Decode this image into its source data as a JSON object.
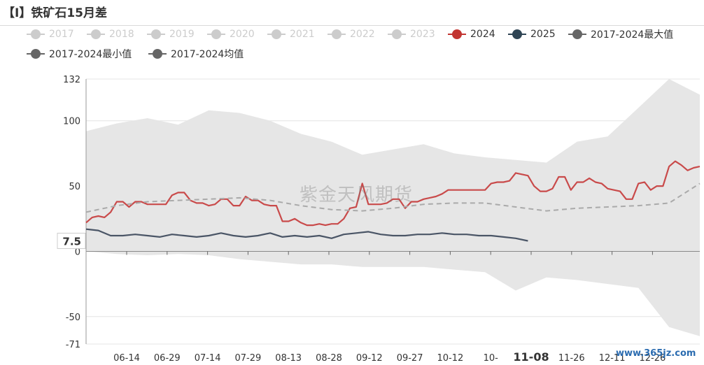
{
  "title": "【I】铁矿石15月差",
  "watermark": "紫金天风期货",
  "site_badge": "www.365jz.com",
  "colors": {
    "series_2024": "#c94a4a",
    "series_2025": "#4a5566",
    "band": "#e6e6e6",
    "average": "#aaaaaa",
    "legend_inactive": "#cccccc",
    "legend_active_text": "#333333"
  },
  "legend": [
    {
      "label": "2017",
      "active": false,
      "color": "#cccccc"
    },
    {
      "label": "2018",
      "active": false,
      "color": "#cccccc"
    },
    {
      "label": "2019",
      "active": false,
      "color": "#cccccc"
    },
    {
      "label": "2020",
      "active": false,
      "color": "#cccccc"
    },
    {
      "label": "2021",
      "active": false,
      "color": "#cccccc"
    },
    {
      "label": "2022",
      "active": false,
      "color": "#cccccc"
    },
    {
      "label": "2023",
      "active": false,
      "color": "#cccccc"
    },
    {
      "label": "2024",
      "active": true,
      "color": "#c23531"
    },
    {
      "label": "2025",
      "active": true,
      "color": "#2f4554"
    },
    {
      "label": "2017-2024最大值",
      "active": true,
      "color": "#666666"
    },
    {
      "label": "2017-2024最小值",
      "active": true,
      "color": "#666666"
    },
    {
      "label": "2017-2024均值",
      "active": true,
      "color": "#666666"
    }
  ],
  "chart_data": {
    "type": "line",
    "title": "【I】铁矿石15月差",
    "y_ticks": [
      -71,
      -50,
      0,
      50,
      100,
      132
    ],
    "ylim": [
      -71,
      132
    ],
    "x_ticks": [
      "06-14",
      "06-29",
      "07-14",
      "07-29",
      "08-13",
      "08-28",
      "09-12",
      "09-27",
      "10-12",
      "10-",
      "11-08",
      "11-26",
      "12-11",
      "12-26"
    ],
    "x_highlight": "11-08",
    "y_marker": {
      "label": "7.5",
      "value": 7.5
    },
    "grid": true,
    "legend_position": "top",
    "x_index_range": [
      0,
      100
    ],
    "series": [
      {
        "name": "2024",
        "kind": "line",
        "color": "#c94a4a",
        "x": [
          0,
          1,
          2,
          3,
          4,
          5,
          6,
          7,
          8,
          9,
          10,
          11,
          12,
          13,
          14,
          15,
          16,
          17,
          18,
          19,
          20,
          21,
          22,
          23,
          24,
          25,
          26,
          27,
          28,
          29,
          30,
          31,
          32,
          33,
          34,
          35,
          36,
          37,
          38,
          39,
          40,
          41,
          42,
          43,
          44,
          45,
          46,
          47,
          48,
          49,
          50,
          51,
          52,
          53,
          54,
          55,
          56,
          57,
          58,
          59,
          60,
          61,
          62,
          63,
          64,
          65,
          66,
          67,
          68,
          69,
          70,
          71,
          72,
          73,
          74,
          75,
          76,
          77,
          78,
          79,
          80,
          81,
          82,
          83,
          84,
          85,
          86,
          87,
          88,
          89,
          90,
          91,
          92,
          93,
          94,
          95,
          96,
          97,
          98,
          99,
          100
        ],
        "y": [
          22,
          26,
          27,
          26,
          30,
          38,
          38,
          34,
          38,
          38,
          36,
          36,
          36,
          36,
          43,
          45,
          45,
          39,
          37,
          37,
          35,
          36,
          40,
          40,
          35,
          35,
          42,
          39,
          39,
          36,
          35,
          35,
          23,
          23,
          25,
          22,
          20,
          20,
          21,
          20,
          21,
          21,
          25,
          33,
          34,
          52,
          36,
          36,
          36,
          37,
          40,
          40,
          33,
          38,
          38,
          40,
          41,
          42,
          44,
          47,
          47,
          47,
          47,
          47,
          47,
          47,
          52,
          53,
          53,
          54,
          60,
          59,
          58,
          50,
          46,
          46,
          48,
          57,
          57,
          47,
          53,
          53,
          56,
          53,
          52,
          48,
          47,
          46,
          40,
          40,
          52,
          53,
          47,
          50,
          50,
          65,
          69,
          66,
          62,
          64,
          65
        ]
      },
      {
        "name": "2025",
        "kind": "line",
        "color": "#4a5566",
        "x": [
          0,
          2,
          4,
          6,
          8,
          10,
          12,
          14,
          16,
          18,
          20,
          22,
          24,
          26,
          28,
          30,
          32,
          34,
          36,
          38,
          40,
          42,
          44,
          46,
          48,
          50,
          52,
          54,
          56,
          58,
          60,
          62,
          64,
          66,
          68,
          70,
          72
        ],
        "y": [
          17,
          16,
          12,
          12,
          13,
          12,
          11,
          13,
          12,
          11,
          12,
          14,
          12,
          11,
          12,
          14,
          11,
          12,
          11,
          12,
          10,
          13,
          14,
          15,
          13,
          12,
          12,
          13,
          13,
          14,
          13,
          13,
          12,
          12,
          11,
          10,
          8
        ]
      },
      {
        "name": "2017-2024均值",
        "kind": "dashed",
        "color": "#aaaaaa",
        "x": [
          0,
          5,
          10,
          15,
          20,
          25,
          30,
          35,
          40,
          45,
          50,
          55,
          60,
          65,
          70,
          75,
          80,
          85,
          90,
          95,
          100
        ],
        "y": [
          30,
          35,
          38,
          39,
          40,
          41,
          39,
          35,
          32,
          31,
          33,
          36,
          37,
          37,
          34,
          31,
          33,
          34,
          35,
          37,
          52
        ]
      },
      {
        "name": "2017-2024最大值",
        "kind": "band-top",
        "color": "#e6e6e6",
        "x": [
          0,
          5,
          10,
          15,
          20,
          25,
          30,
          35,
          40,
          45,
          50,
          55,
          60,
          65,
          70,
          75,
          80,
          85,
          90,
          95,
          100
        ],
        "y": [
          92,
          98,
          102,
          97,
          108,
          106,
          100,
          90,
          84,
          74,
          78,
          82,
          75,
          72,
          70,
          68,
          84,
          88,
          110,
          132,
          120
        ]
      },
      {
        "name": "2017-2024最小值",
        "kind": "band-bottom",
        "color": "#e6e6e6",
        "x": [
          0,
          5,
          10,
          15,
          20,
          25,
          30,
          35,
          40,
          45,
          50,
          55,
          60,
          65,
          70,
          75,
          80,
          85,
          90,
          95,
          100
        ],
        "y": [
          0,
          -2,
          -3,
          -2,
          -3,
          -6,
          -8,
          -10,
          -10,
          -12,
          -12,
          -12,
          -14,
          -16,
          -30,
          -20,
          -22,
          -25,
          -28,
          -58,
          -65
        ]
      }
    ]
  }
}
